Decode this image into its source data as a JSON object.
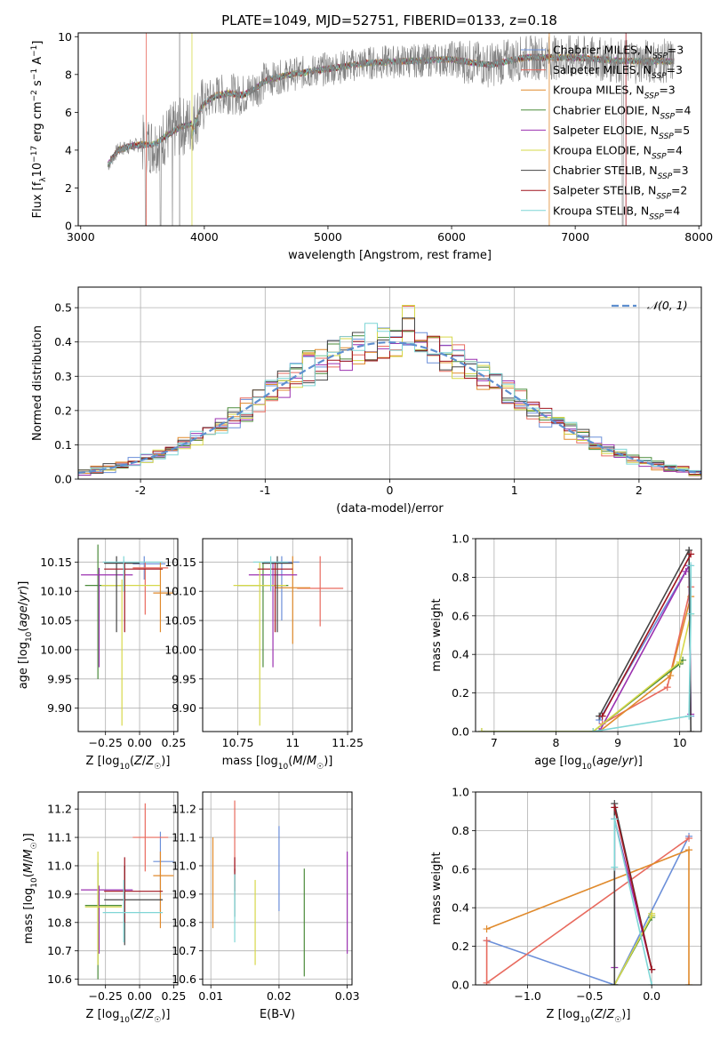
{
  "figure_title": "PLATE=1049, MJD=52751, FIBERID=0133, z=0.18",
  "colors": {
    "Chabrier MILES": "#6b8fd9",
    "Salpeter MILES": "#e86a5e",
    "Kroupa MILES": "#e08a2c",
    "Chabrier ELODIE": "#4b8b3a",
    "Salpeter ELODIE": "#9b31b0",
    "Kroupa ELODIE": "#d6d84a",
    "Chabrier STELIB": "#444444",
    "Salpeter STELIB": "#a0141e",
    "Kroupa STELIB": "#7fd6d6",
    "data": "#808080",
    "normal_curve": "#5e8fcf"
  },
  "chart_data": [
    {
      "id": "spectrum",
      "type": "line",
      "xlabel": "wavelength [Angstrom, rest frame]",
      "ylabel": "Flux [f_λ10^-17 erg cm^-2 s^-1 A^-1]",
      "xlim": [
        2980,
        8020
      ],
      "ylim": [
        0,
        10.2
      ],
      "xticks": [
        3000,
        4000,
        5000,
        6000,
        7000,
        8000
      ],
      "yticks": [
        0,
        2,
        4,
        6,
        8,
        10
      ],
      "grid": false,
      "legend_position": "bottom-right",
      "legend": [
        {
          "name": "Chabrier MILES",
          "nssp": "3"
        },
        {
          "name": "Salpeter MILES",
          "nssp": "3"
        },
        {
          "name": "Kroupa MILES",
          "nssp": "3"
        },
        {
          "name": "Chabrier ELODIE",
          "nssp": "4"
        },
        {
          "name": "Salpeter ELODIE",
          "nssp": "5"
        },
        {
          "name": "Kroupa ELODIE",
          "nssp": "4"
        },
        {
          "name": "Chabrier STELIB",
          "nssp": "3"
        },
        {
          "name": "Salpeter STELIB",
          "nssp": "2"
        },
        {
          "name": "Kroupa STELIB",
          "nssp": "4"
        }
      ],
      "continuum": {
        "x": [
          3220,
          3300,
          3400,
          3500,
          3600,
          3700,
          3800,
          3900,
          4000,
          4100,
          4200,
          4300,
          4400,
          4500,
          4700,
          5000,
          5300,
          5600,
          6000,
          6300,
          6600,
          7000,
          7400,
          7800
        ],
        "y": [
          3.2,
          4.0,
          4.2,
          4.3,
          4.3,
          4.8,
          5.2,
          5.4,
          6.5,
          6.9,
          7.0,
          6.9,
          7.2,
          7.7,
          8.0,
          8.3,
          8.6,
          8.7,
          8.8,
          8.5,
          8.9,
          8.9,
          8.7,
          8.7
        ]
      }
    },
    {
      "id": "residuals",
      "type": "histogram",
      "xlabel": "(data-model)/error",
      "ylabel": "Normed distribution",
      "xlim": [
        -2.5,
        2.5
      ],
      "ylim": [
        0,
        0.56
      ],
      "xticks": [
        -2,
        -1,
        0,
        1,
        2
      ],
      "yticks": [
        0.0,
        0.1,
        0.2,
        0.3,
        0.4,
        0.5
      ],
      "grid": true,
      "legend_position": "top-right",
      "legend": [
        "𝒩(0, 1)"
      ],
      "bin_width": 0.1,
      "curve": "normal(0,1)"
    },
    {
      "id": "age_vs_Z",
      "type": "errorbar",
      "xlabel": "Z [log10(Z/Z☉)]",
      "ylabel": "age [log10(age/yr)]",
      "xlim": [
        -0.45,
        0.28
      ],
      "ylim": [
        9.86,
        10.19
      ],
      "xticks": [
        -0.25,
        0.0,
        0.25
      ],
      "xticklabels": [
        "−0.25",
        "0.00",
        "0.25"
      ],
      "yticks": [
        9.9,
        9.95,
        10.0,
        10.05,
        10.1,
        10.15
      ],
      "grid": true,
      "series": [
        {
          "model": "Chabrier MILES",
          "x": [
            -0.05,
            0.19
          ],
          "xerr": 0.24,
          "y": 10.147,
          "yerr": [
            10.12,
            10.16
          ]
        },
        {
          "model": "Salpeter MILES",
          "x": [
            -0.05,
            0.21
          ],
          "xerr": 0.24,
          "y": 10.14,
          "yerr": [
            10.06,
            10.15
          ]
        },
        {
          "model": "Kroupa MILES",
          "x": [
            0.1,
            0.25
          ],
          "xerr": 0.1,
          "y": 10.097,
          "yerr": [
            10.03,
            10.15
          ]
        },
        {
          "model": "Chabrier ELODIE",
          "x": [
            -0.4,
            -0.13
          ],
          "xerr": 0.14,
          "y": 10.11,
          "yerr": [
            9.95,
            10.18
          ]
        },
        {
          "model": "Salpeter ELODIE",
          "x": [
            -0.43,
            -0.05
          ],
          "xerr": 0.2,
          "y": 10.128,
          "yerr": [
            9.97,
            10.14
          ]
        },
        {
          "model": "Kroupa ELODIE",
          "x": [
            -0.28,
            0.15
          ],
          "xerr": 0.2,
          "y": 10.11,
          "yerr": [
            9.87,
            10.12
          ]
        },
        {
          "model": "Chabrier STELIB",
          "x": [
            -0.26,
            0.0
          ],
          "xerr": 0.13,
          "y": 10.148,
          "yerr": [
            10.03,
            10.16
          ]
        },
        {
          "model": "Salpeter STELIB",
          "x": [
            -0.26,
            0.17
          ],
          "xerr": 0.2,
          "y": 10.138,
          "yerr": [
            10.03,
            10.15
          ]
        },
        {
          "model": "Kroupa STELIB",
          "x": [
            -0.27,
            0.17
          ],
          "xerr": 0.2,
          "y": 10.15,
          "yerr": [
            10.1,
            10.16
          ]
        }
      ]
    },
    {
      "id": "age_vs_mass",
      "type": "errorbar",
      "xlabel": "mass [log10(M/M☉)]",
      "ylabel": "",
      "xlim": [
        10.59,
        11.27
      ],
      "ylim": [
        9.86,
        10.19
      ],
      "xticks": [
        10.75,
        11.0,
        11.25
      ],
      "yticks": [
        9.9,
        9.95,
        10.0,
        10.05,
        10.1,
        10.15
      ],
      "grid": true,
      "series": [
        {
          "model": "Chabrier MILES",
          "x": [
            10.87,
            11.03
          ],
          "y": 10.15,
          "yerr": [
            10.05,
            10.16
          ]
        },
        {
          "model": "Salpeter MILES",
          "x": [
            11.02,
            11.23
          ],
          "y": 10.105,
          "yerr": [
            10.04,
            10.16
          ]
        },
        {
          "model": "Kroupa MILES",
          "x": [
            10.92,
            11.08
          ],
          "y": 10.106,
          "yerr": [
            10.01,
            10.16
          ]
        },
        {
          "model": "Chabrier ELODIE",
          "x": [
            10.75,
            10.98
          ],
          "y": 10.11,
          "yerr": [
            9.97,
            10.15
          ]
        },
        {
          "model": "Salpeter ELODIE",
          "x": [
            10.8,
            11.02
          ],
          "y": 10.128,
          "yerr": [
            9.97,
            10.15
          ]
        },
        {
          "model": "Kroupa ELODIE",
          "x": [
            10.73,
            10.97
          ],
          "y": 10.11,
          "yerr": [
            9.87,
            10.15
          ]
        },
        {
          "model": "Chabrier STELIB",
          "x": [
            10.86,
            11.0
          ],
          "y": 10.148,
          "yerr": [
            10.03,
            10.16
          ]
        },
        {
          "model": "Salpeter STELIB",
          "x": [
            10.84,
            11.0
          ],
          "y": 10.138,
          "yerr": [
            10.03,
            10.15
          ]
        },
        {
          "model": "Kroupa STELIB",
          "x": [
            10.82,
            10.98
          ],
          "y": 10.15,
          "yerr": [
            10.1,
            10.16
          ]
        }
      ]
    },
    {
      "id": "massweight_vs_age",
      "type": "line",
      "xlabel": "age [log10(age/yr)]",
      "ylabel": "mass weight",
      "xlim": [
        6.7,
        10.35
      ],
      "ylim": [
        0.0,
        1.0
      ],
      "xticks": [
        7,
        8,
        9,
        10
      ],
      "yticks": [
        0.0,
        0.2,
        0.4,
        0.6,
        0.8,
        1.0
      ],
      "grid": true,
      "series": [
        {
          "model": "Chabrier MILES",
          "x": [
            8.7,
            10.15,
            10.18
          ],
          "y": [
            0.06,
            0.86,
            0.08
          ]
        },
        {
          "model": "Salpeter MILES",
          "x": [
            8.75,
            9.8,
            10.18
          ],
          "y": [
            0.04,
            0.23,
            0.75
          ]
        },
        {
          "model": "Kroupa MILES",
          "x": [
            8.7,
            9.85,
            10.18
          ],
          "y": [
            0.0,
            0.29,
            0.7
          ]
        },
        {
          "model": "Chabrier ELODIE",
          "x": [
            6.8,
            8.6,
            10.0,
            10.05
          ],
          "y": [
            0.0,
            0.0,
            0.35,
            0.37
          ]
        },
        {
          "model": "Salpeter ELODIE",
          "x": [
            8.7,
            10.1,
            10.15,
            10.18
          ],
          "y": [
            0.0,
            0.83,
            0.86,
            0.09
          ]
        },
        {
          "model": "Kroupa ELODIE",
          "x": [
            6.8,
            8.6,
            10.0,
            10.18
          ],
          "y": [
            0.0,
            0.0,
            0.36,
            0.61
          ]
        },
        {
          "model": "Chabrier STELIB",
          "x": [
            8.7,
            10.15,
            10.18
          ],
          "y": [
            0.08,
            0.94,
            0.0
          ]
        },
        {
          "model": "Salpeter STELIB",
          "x": [
            8.75,
            10.18
          ],
          "y": [
            0.08,
            0.92
          ]
        },
        {
          "model": "Kroupa STELIB",
          "x": [
            8.6,
            10.15,
            10.18,
            10.18
          ],
          "y": [
            0.0,
            0.08,
            0.61,
            0.86
          ]
        }
      ]
    },
    {
      "id": "mass_vs_Z",
      "type": "errorbar",
      "xlabel": "Z [log10(Z/Z☉)]",
      "ylabel": "mass [log10(M/M☉)]",
      "xlim": [
        -0.45,
        0.28
      ],
      "ylim": [
        10.58,
        11.26
      ],
      "xticks": [
        -0.25,
        0.0,
        0.25
      ],
      "xticklabels": [
        "−0.25",
        "0.00",
        "0.25"
      ],
      "yticks": [
        10.6,
        10.7,
        10.8,
        10.9,
        11.0,
        11.1,
        11.2
      ],
      "grid": true,
      "series": [
        {
          "model": "Chabrier MILES",
          "x": [
            0.1,
            0.25
          ],
          "y": 11.015,
          "yerr": [
            10.84,
            11.12
          ]
        },
        {
          "model": "Salpeter MILES",
          "x": [
            -0.05,
            0.21
          ],
          "y": 11.1,
          "yerr": [
            10.98,
            11.22
          ]
        },
        {
          "model": "Kroupa MILES",
          "x": [
            0.1,
            0.25
          ],
          "y": 10.965,
          "yerr": [
            10.78,
            11.05
          ]
        },
        {
          "model": "Chabrier ELODIE",
          "x": [
            -0.4,
            -0.13
          ],
          "y": 10.86,
          "yerr": [
            10.6,
            11.01
          ]
        },
        {
          "model": "Salpeter ELODIE",
          "x": [
            -0.43,
            -0.05
          ],
          "y": 10.915,
          "yerr": [
            10.69,
            10.93
          ]
        },
        {
          "model": "Kroupa ELODIE",
          "x": [
            -0.4,
            -0.13
          ],
          "y": 10.855,
          "yerr": [
            10.65,
            11.05
          ]
        },
        {
          "model": "Chabrier STELIB",
          "x": [
            -0.26,
            0.17
          ],
          "y": 10.88,
          "yerr": [
            10.72,
            11.0
          ]
        },
        {
          "model": "Salpeter STELIB",
          "x": [
            -0.26,
            0.17
          ],
          "y": 10.91,
          "yerr": [
            10.8,
            11.03
          ]
        },
        {
          "model": "Kroupa STELIB",
          "x": [
            -0.27,
            0.17
          ],
          "y": 10.835,
          "yerr": [
            10.73,
            10.95
          ]
        }
      ]
    },
    {
      "id": "mass_vs_ebv",
      "type": "errorbar",
      "xlabel": "E(B-V)",
      "ylabel": "",
      "xlim": [
        0.0088,
        0.0307
      ],
      "ylim": [
        10.58,
        11.26
      ],
      "xticks": [
        0.01,
        0.02,
        0.03
      ],
      "yticks": [
        10.6,
        10.7,
        10.8,
        10.9,
        11.0,
        11.1,
        11.2
      ],
      "grid": true,
      "series": [
        {
          "model": "Chabrier MILES",
          "x": 0.02,
          "yerr": [
            10.84,
            11.14
          ]
        },
        {
          "model": "Salpeter MILES",
          "x": 0.0135,
          "yerr": [
            10.98,
            11.23
          ]
        },
        {
          "model": "Kroupa MILES",
          "x": 0.0103,
          "yerr": [
            10.78,
            11.1
          ]
        },
        {
          "model": "Chabrier ELODIE",
          "x": 0.0237,
          "yerr": [
            10.61,
            10.99
          ]
        },
        {
          "model": "Salpeter ELODIE",
          "x": 0.03,
          "yerr": [
            10.69,
            11.05
          ]
        },
        {
          "model": "Kroupa ELODIE",
          "x": 0.0165,
          "yerr": [
            10.65,
            10.95
          ]
        },
        {
          "model": "Chabrier STELIB",
          "x": 0.0135,
          "yerr": [
            10.82,
            10.99
          ]
        },
        {
          "model": "Salpeter STELIB",
          "x": 0.0135,
          "yerr": [
            10.91,
            11.03
          ]
        },
        {
          "model": "Kroupa STELIB",
          "x": 0.0135,
          "yerr": [
            10.73,
            10.97
          ]
        }
      ]
    },
    {
      "id": "massweight_vs_Z",
      "type": "line",
      "xlabel": "Z [log10(Z/Z☉)]",
      "ylabel": "mass weight",
      "xlim": [
        -1.42,
        0.4
      ],
      "ylim": [
        0.0,
        1.0
      ],
      "xticks": [
        -1.0,
        -0.5,
        0.0
      ],
      "xticklabels": [
        "−1.0",
        "−0.5",
        "0.0"
      ],
      "yticks": [
        0.0,
        0.2,
        0.4,
        0.6,
        0.8,
        1.0
      ],
      "grid": true,
      "series": [
        {
          "model": "Chabrier MILES",
          "x": [
            -1.33,
            -0.3,
            0.3
          ],
          "y": [
            0.23,
            0.0,
            0.77
          ]
        },
        {
          "model": "Salpeter MILES",
          "x": [
            -1.33,
            -1.33,
            0.3
          ],
          "y": [
            0.23,
            0.01,
            0.76
          ]
        },
        {
          "model": "Kroupa MILES",
          "x": [
            -1.33,
            0.3,
            0.3
          ],
          "y": [
            0.29,
            0.7,
            0.0
          ]
        },
        {
          "model": "Chabrier ELODIE",
          "x": [
            -0.3,
            0.0,
            0.0
          ],
          "y": [
            0.0,
            0.35,
            0.36
          ]
        },
        {
          "model": "Salpeter ELODIE",
          "x": [
            -0.3,
            -0.3,
            0.0
          ],
          "y": [
            0.09,
            0.86,
            0.08
          ]
        },
        {
          "model": "Kroupa ELODIE",
          "x": [
            -0.3,
            0.0,
            0.0
          ],
          "y": [
            0.0,
            0.36,
            0.37
          ]
        },
        {
          "model": "Chabrier STELIB",
          "x": [
            -0.3,
            -0.3,
            0.0
          ],
          "y": [
            0.0,
            0.94,
            0.08
          ]
        },
        {
          "model": "Salpeter STELIB",
          "x": [
            -0.3,
            0.0
          ],
          "y": [
            0.92,
            0.08
          ]
        },
        {
          "model": "Kroupa STELIB",
          "x": [
            -0.3,
            -0.3,
            0.0
          ],
          "y": [
            0.61,
            0.86,
            0.0
          ]
        }
      ]
    }
  ]
}
